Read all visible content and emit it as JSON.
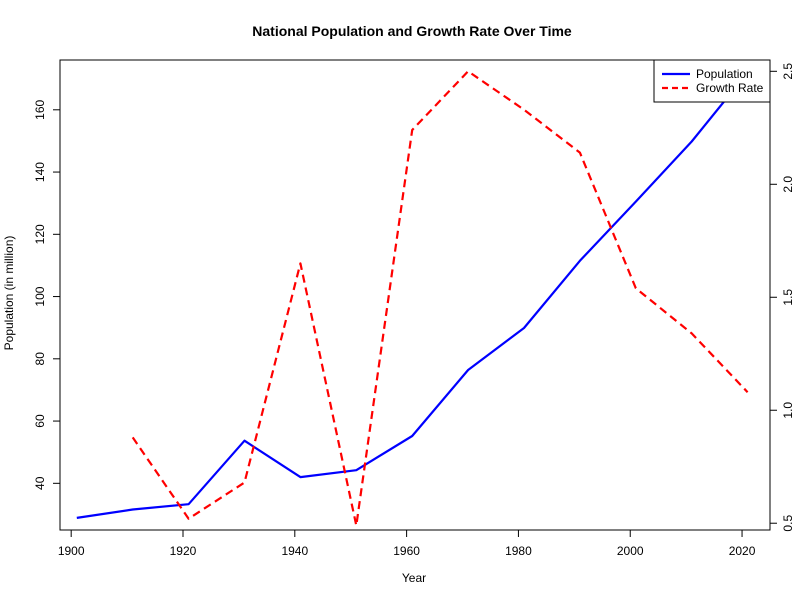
{
  "chart_data": {
    "type": "line",
    "title": "National Population and Growth Rate Over Time",
    "xlabel": "Year",
    "ylabel": "Population (in million)",
    "y2label": "",
    "xlim": [
      1898,
      2025
    ],
    "ylim": [
      25,
      176
    ],
    "y2lim": [
      0.47,
      2.55
    ],
    "xticks": [
      1900,
      1920,
      1940,
      1960,
      1980,
      2000,
      2020
    ],
    "yticks": [
      40,
      60,
      80,
      100,
      120,
      140,
      160
    ],
    "y2ticks": [
      0.5,
      1.0,
      1.5,
      2.0,
      2.5
    ],
    "y2ticklabels": [
      "0.5",
      "1.0",
      "1.5",
      "2.0",
      "2.5"
    ],
    "grid": false,
    "legend_position": "top-right",
    "series": [
      {
        "name": "Population",
        "axis": "left",
        "color": "#0000ff",
        "style": "solid",
        "x": [
          1901,
          1911,
          1921,
          1931,
          1941,
          1951,
          1961,
          1971,
          1981,
          1991,
          2001,
          2011,
          2021
        ],
        "y": [
          28.9,
          31.6,
          33.3,
          53.7,
          42.0,
          44.2,
          55.2,
          76.4,
          89.9,
          111.5,
          130.5,
          149.8,
          172.0
        ]
      },
      {
        "name": "Growth Rate",
        "axis": "right",
        "color": "#ff0000",
        "style": "dashed",
        "x": [
          1911,
          1921,
          1931,
          1941,
          1951,
          1961,
          1971,
          1981,
          1991,
          2001,
          2011,
          2021
        ],
        "y": [
          0.88,
          0.52,
          0.68,
          1.65,
          0.49,
          2.24,
          2.5,
          2.33,
          2.14,
          1.54,
          1.34,
          1.08
        ]
      }
    ]
  }
}
